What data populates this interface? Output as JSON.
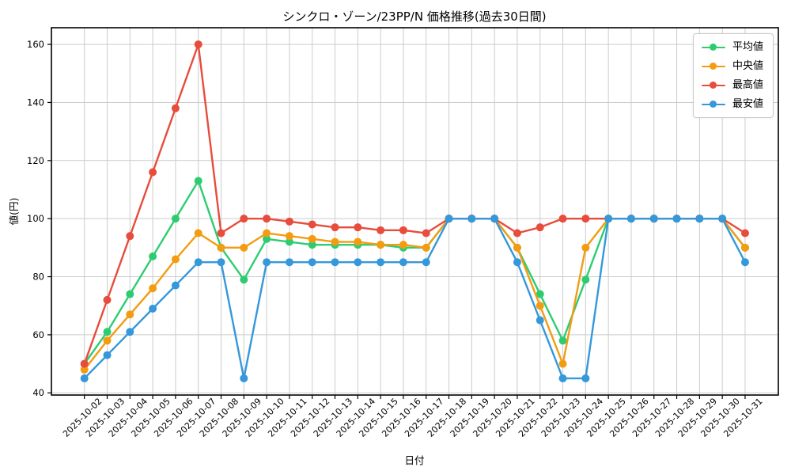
{
  "title": "シンクロ・ゾーン/23PP/N 価格推移(過去30日間)",
  "chart_data": {
    "type": "line",
    "title": "シンクロ・ゾーン/23PP/N 価格推移(過去30日間)",
    "xlabel": "日付",
    "ylabel": "値(円)",
    "x": [
      "2025-10-02",
      "2025-10-03",
      "2025-10-04",
      "2025-10-05",
      "2025-10-06",
      "2025-10-07",
      "2025-10-08",
      "2025-10-09",
      "2025-10-10",
      "2025-10-11",
      "2025-10-12",
      "2025-10-13",
      "2025-10-14",
      "2025-10-15",
      "2025-10-16",
      "2025-10-17",
      "2025-10-18",
      "2025-10-19",
      "2025-10-20",
      "2025-10-21",
      "2025-10-22",
      "2025-10-23",
      "2025-10-24",
      "2025-10-25",
      "2025-10-26",
      "2025-10-27",
      "2025-10-28",
      "2025-10-29",
      "2025-10-30",
      "2025-10-31"
    ],
    "series": [
      {
        "key": "average",
        "name": "平均値",
        "color": "#2ecc71",
        "values": [
          50,
          61,
          74,
          87,
          100,
          113,
          90,
          79,
          93,
          92,
          91,
          91,
          91,
          91,
          90,
          90,
          100,
          100,
          100,
          90,
          74,
          58,
          79,
          100,
          100,
          100,
          100,
          100,
          100,
          90
        ]
      },
      {
        "key": "median",
        "name": "中央値",
        "color": "#f39c12",
        "values": [
          48,
          58,
          67,
          76,
          86,
          95,
          90,
          90,
          95,
          94,
          93,
          92,
          92,
          91,
          91,
          90,
          100,
          100,
          100,
          90,
          70,
          50,
          90,
          100,
          100,
          100,
          100,
          100,
          100,
          90
        ]
      },
      {
        "key": "max",
        "name": "最高値",
        "color": "#e74c3c",
        "values": [
          50,
          72,
          94,
          116,
          138,
          160,
          95,
          100,
          100,
          99,
          98,
          97,
          97,
          96,
          96,
          95,
          100,
          100,
          100,
          95,
          97,
          100,
          100,
          100,
          100,
          100,
          100,
          100,
          100,
          95
        ]
      },
      {
        "key": "min",
        "name": "最安値",
        "color": "#3498db",
        "values": [
          45,
          53,
          61,
          69,
          77,
          85,
          85,
          45,
          85,
          85,
          85,
          85,
          85,
          85,
          85,
          85,
          100,
          100,
          100,
          85,
          65,
          45,
          45,
          100,
          100,
          100,
          100,
          100,
          100,
          85
        ]
      }
    ],
    "yticks": [
      40,
      60,
      80,
      100,
      120,
      140,
      160
    ],
    "ylim": [
      39.25,
      165.75
    ],
    "grid": true,
    "grid_color": "#cccccc",
    "spine_color": "#000000",
    "legend_position": "upper right",
    "xtick_rotation": 45
  }
}
